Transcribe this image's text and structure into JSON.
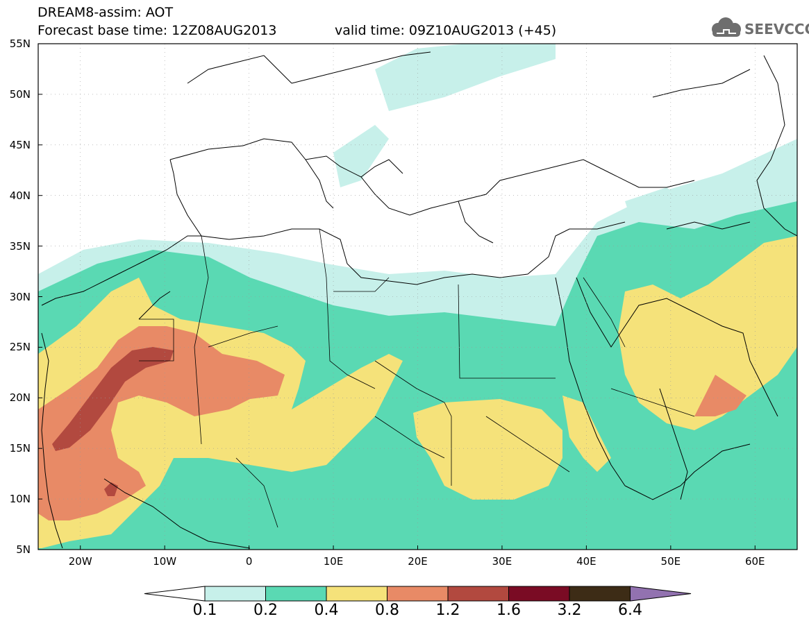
{
  "header": {
    "title": "DREAM8-assim: AOT",
    "base_time": "Forecast base time: 12Z08AUG2013",
    "valid_time": "valid time: 09Z10AUG2013 (+45)",
    "logo_text": "SEEVCCC"
  },
  "map": {
    "projection": "lat-lon",
    "lon_range": [
      -25,
      65
    ],
    "lat_range": [
      5,
      55
    ],
    "lat_labels": [
      "55N",
      "50N",
      "45N",
      "40N",
      "35N",
      "30N",
      "25N",
      "20N",
      "15N",
      "10N",
      "5N"
    ],
    "lon_labels": [
      "20W",
      "10W",
      "0",
      "10E",
      "20E",
      "30E",
      "40E",
      "50E",
      "60E"
    ],
    "grid": "dotted"
  },
  "colorbar": {
    "labels": [
      "0.1",
      "0.2",
      "0.4",
      "0.8",
      "1.2",
      "1.6",
      "3.2",
      "6.4"
    ],
    "colors": [
      "#ffffff",
      "#c7f0ea",
      "#5ad9b3",
      "#f5e27a",
      "#e88a66",
      "#b2493f",
      "#7a0b24",
      "#3d2c16",
      "#9272b0"
    ]
  }
}
